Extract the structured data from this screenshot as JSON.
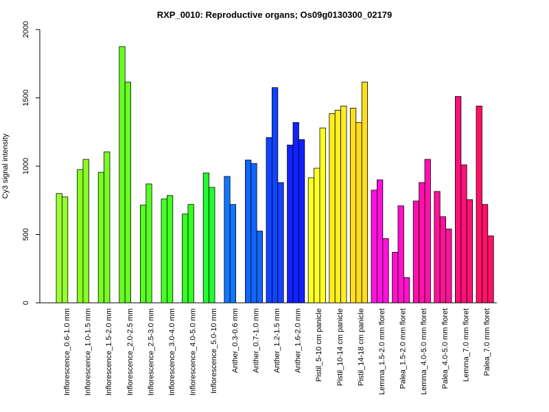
{
  "chart_data": {
    "type": "bar",
    "title": "RXP_0010: Reproductive organs; Os09g0130300_02179",
    "xlabel": "",
    "ylabel": "Cy3 signal intensity",
    "ylim": [
      0,
      2000
    ],
    "yticks": [
      0,
      500,
      1000,
      1500,
      2000
    ],
    "grid": false,
    "legend": "none",
    "groups": [
      {
        "label": "Inflorescence_0.6-1.0 mm",
        "color": "#99ff33",
        "values": [
          800,
          775
        ]
      },
      {
        "label": "Inflorescence_1.0-1.5 mm",
        "color": "#88ff22",
        "values": [
          975,
          1050
        ]
      },
      {
        "label": "Inflorescence_1.5-2.0 mm",
        "color": "#77ff22",
        "values": [
          955,
          1105
        ]
      },
      {
        "label": "Inflorescence_2.0-2.5 mm",
        "color": "#66ff22",
        "values": [
          1875,
          1615
        ]
      },
      {
        "label": "Inflorescence_2.5-3.0 mm",
        "color": "#55ff22",
        "values": [
          715,
          870
        ]
      },
      {
        "label": "Inflorescence_3.0-4.0 mm",
        "color": "#44ff22",
        "values": [
          760,
          785
        ]
      },
      {
        "label": "Inflorescence_4.0-5.0 mm",
        "color": "#33ff22",
        "values": [
          650,
          720
        ]
      },
      {
        "label": "Inflorescence_5.0-10 mm",
        "color": "#22ff33",
        "values": [
          950,
          845
        ]
      },
      {
        "label": "Anther_0.3-0.6 mm",
        "color": "#1177ff",
        "values": [
          925,
          720
        ]
      },
      {
        "label": "Anther_0.7-1.0 mm",
        "color": "#1166ff",
        "values": [
          1045,
          1020,
          525
        ]
      },
      {
        "label": "Anther_1.2-1.5 mm",
        "color": "#1144ff",
        "values": [
          1210,
          1575,
          880
        ]
      },
      {
        "label": "Anther_1.6-2.0 mm",
        "color": "#1122ff",
        "values": [
          1155,
          1320,
          1195
        ]
      },
      {
        "label": "Pistil_5-10 cm panicle",
        "color": "#ffff22",
        "values": [
          915,
          985,
          1280
        ]
      },
      {
        "label": "Pistil_10-14 cm panicle",
        "color": "#ffee22",
        "values": [
          1385,
          1410,
          1440
        ]
      },
      {
        "label": "Pistil_14-18 cm panicle",
        "color": "#ffdd22",
        "values": [
          1425,
          1320,
          1615
        ]
      },
      {
        "label": "Lemma_1.5-2.0 mm floret",
        "color": "#ff11dd",
        "values": [
          825,
          900,
          470
        ]
      },
      {
        "label": "Palea_1.5-2.0 mm floret",
        "color": "#ff11cc",
        "values": [
          370,
          710,
          185
        ]
      },
      {
        "label": "Lemma_4.0-5.0 mm floret",
        "color": "#ff11aa",
        "values": [
          745,
          880,
          1050
        ]
      },
      {
        "label": "Palea_4.0-5.0 mm floret",
        "color": "#ff1199",
        "values": [
          815,
          630,
          540
        ]
      },
      {
        "label": "Lemma_7.0 mm floret",
        "color": "#ff1177",
        "values": [
          1510,
          1010,
          755
        ]
      },
      {
        "label": "Palea_7.0 mm floret",
        "color": "#ff1166",
        "values": [
          1440,
          720,
          490
        ]
      }
    ]
  }
}
